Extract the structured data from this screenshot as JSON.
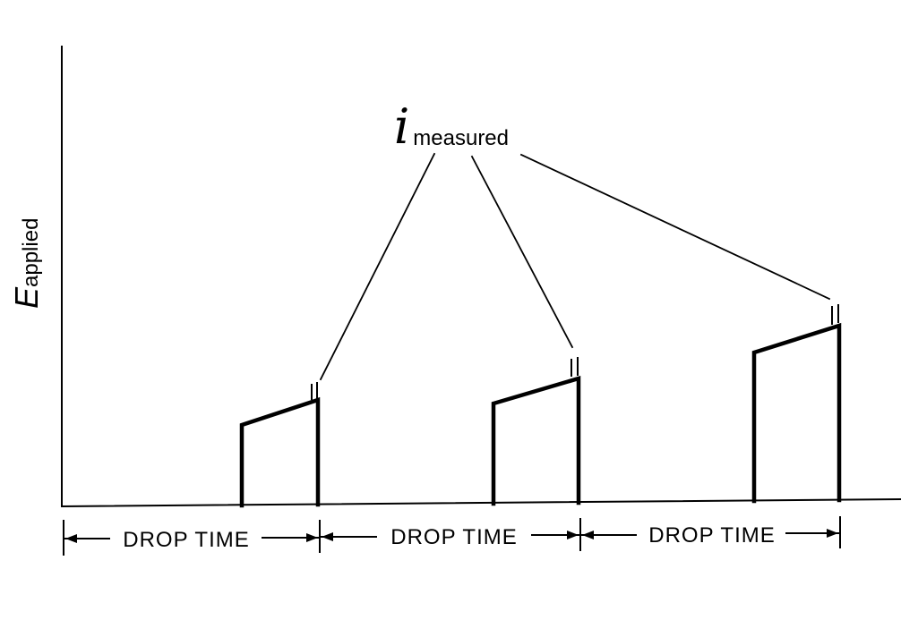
{
  "y_axis": {
    "symbol": "E",
    "subscript": "applied"
  },
  "annotation": {
    "symbol": "i",
    "subscript": "measured"
  },
  "intervals": [
    {
      "label": "DROP TIME"
    },
    {
      "label": "DROP TIME"
    },
    {
      "label": "DROP TIME"
    }
  ]
}
